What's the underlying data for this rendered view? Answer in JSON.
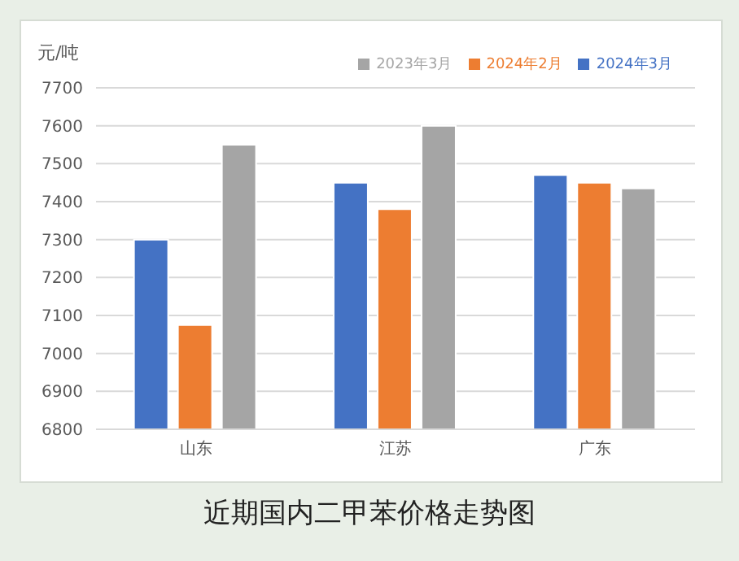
{
  "chart_data": {
    "type": "bar",
    "title": "近期国内二甲苯价格走势图",
    "ylabel": "元/吨",
    "categories": [
      "山东",
      "江苏",
      "广东"
    ],
    "series": [
      {
        "name": "2024年3月",
        "color": "#4472c4",
        "values": [
          7300,
          7450,
          7470
        ]
      },
      {
        "name": "2024年2月",
        "color": "#ed7d31",
        "values": [
          7075,
          7380,
          7450
        ]
      },
      {
        "name": "2023年3月",
        "color": "#a5a5a5",
        "values": [
          7550,
          7600,
          7435
        ]
      }
    ],
    "ylim": [
      6800,
      7700
    ],
    "yticks": [
      6800,
      6900,
      7000,
      7100,
      7200,
      7300,
      7400,
      7500,
      7600,
      7700
    ],
    "grid": "y",
    "legend": "top right"
  }
}
